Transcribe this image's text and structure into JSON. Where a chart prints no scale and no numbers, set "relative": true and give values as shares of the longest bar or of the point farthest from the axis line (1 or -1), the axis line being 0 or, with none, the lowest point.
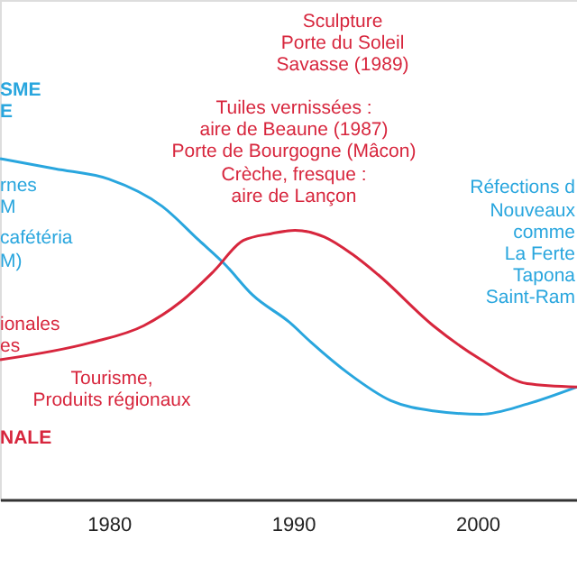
{
  "chart_data": {
    "type": "line",
    "relative": true,
    "xlim": [
      1974.1,
      2005.4
    ],
    "xticks": [
      1980,
      1990,
      2000
    ],
    "grid": false,
    "marker": "none",
    "line_style": "solid",
    "series": [
      {
        "color": "#29a6de",
        "x": [
          1974.1,
          1977.1,
          1980,
          1982.9,
          1984.9,
          1986.3,
          1987.8,
          1989.8,
          1991,
          1993,
          1995.3,
          1997.6,
          2000.2,
          2002.7,
          2005.4
        ],
        "values": [
          1.0,
          0.97,
          0.94,
          0.86,
          0.76,
          0.69,
          0.6,
          0.52,
          0.46,
          0.37,
          0.29,
          0.26,
          0.25,
          0.28,
          0.33
        ]
      },
      {
        "color": "#d7263d",
        "x": [
          1974.1,
          1979,
          1981.9,
          1983.9,
          1985.7,
          1987.3,
          1988.8,
          1990.1,
          1991.7,
          1993.2,
          1994.6,
          1997.6,
          2000.2,
          2002.7,
          2005.4
        ],
        "values": [
          0.41,
          0.46,
          0.51,
          0.58,
          0.67,
          0.76,
          0.78,
          0.79,
          0.77,
          0.72,
          0.66,
          0.51,
          0.41,
          0.34,
          0.33
        ]
      }
    ],
    "annotations": [
      "SME",
      "E",
      "rnes",
      "M",
      "cafétéria",
      "M)",
      "ionales",
      "es",
      "Tourisme,",
      "Produits régionaux",
      "NALE",
      "Tuiles vernissées :",
      "aire de Beaune (1987)",
      "Porte de Bourgogne (Mâcon)",
      "Crèche, fresque :",
      "aire de Lançon",
      "Sculpture",
      "Porte du Soleil",
      "Savasse (1989)",
      "Réfections d",
      "Nouveaux",
      "comme",
      "La Ferte",
      "Tapona",
      "Saint-Ram"
    ]
  }
}
